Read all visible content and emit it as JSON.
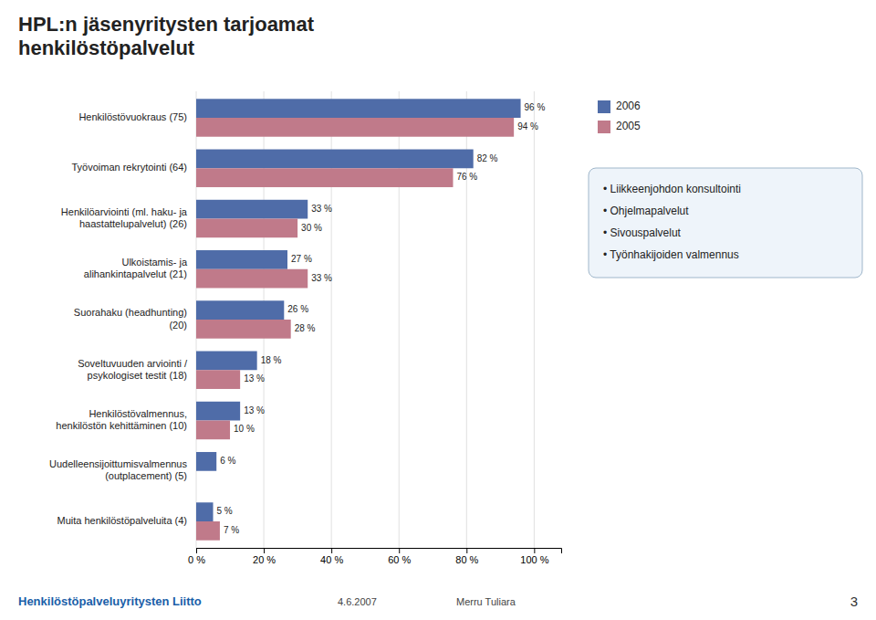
{
  "chart_data": {
    "type": "bar",
    "orientation": "horizontal",
    "title": "HPL:n jäsenyritysten tarjoamat\nhenkilöstöpalvelut",
    "categories": [
      "Henkilöstövuokraus (75)",
      "Työvoiman rekrytointi (64)",
      "Henkilöarviointi (ml. haku- ja\nhaastattelupalvelut) (26)",
      "Ulkoistamis- ja\nalihankintapalvelut (21)",
      "Suorahaku (headhunting)\n(20)",
      "Soveltuvuuden arviointi /\npsykologiset testit (18)",
      "Henkilöstövalmennus,\nhenkilöstön kehittäminen (10)",
      "Uudelleensijoittumisvalmennus\n(outplacement) (5)",
      "Muita henkilöstöpalveluita (4)"
    ],
    "series": [
      {
        "name": "2006",
        "color": "#4F6CA8",
        "values": [
          96,
          82,
          33,
          27,
          26,
          18,
          13,
          6,
          5
        ],
        "value_labels": [
          "96 %",
          "82 %",
          "33 %",
          "27 %",
          "26 %",
          "18 %",
          "13 %",
          "6 %",
          "5 %"
        ]
      },
      {
        "name": "2005",
        "color": "#C07A8A",
        "values": [
          94,
          76,
          30,
          33,
          28,
          13,
          10,
          0,
          7
        ],
        "value_labels": [
          "94 %",
          "76 %",
          "30 %",
          "33 %",
          "28 %",
          "13 %",
          "10 %",
          null,
          "7 %"
        ]
      }
    ],
    "xlim": [
      0,
      108
    ],
    "xticks": [
      {
        "value": 0,
        "label": "0 %"
      },
      {
        "value": 20,
        "label": "20 %"
      },
      {
        "value": 40,
        "label": "40 %"
      },
      {
        "value": 60,
        "label": "60 %"
      },
      {
        "value": 80,
        "label": "80 %"
      },
      {
        "value": 100,
        "label": "100 %"
      }
    ],
    "grid": true,
    "legend": "right",
    "data_labels": true,
    "annotations": [
      "• Liikkeenjohdon konsultointi",
      "• Ohjelmapalvelut",
      "• Sivouspalvelut",
      "• Työnhakijoiden valmennus"
    ],
    "footer": [
      "Henkilöstöpalveluyritysten Liitto",
      "4.6.2007",
      "Merru Tuliara",
      "3"
    ]
  }
}
